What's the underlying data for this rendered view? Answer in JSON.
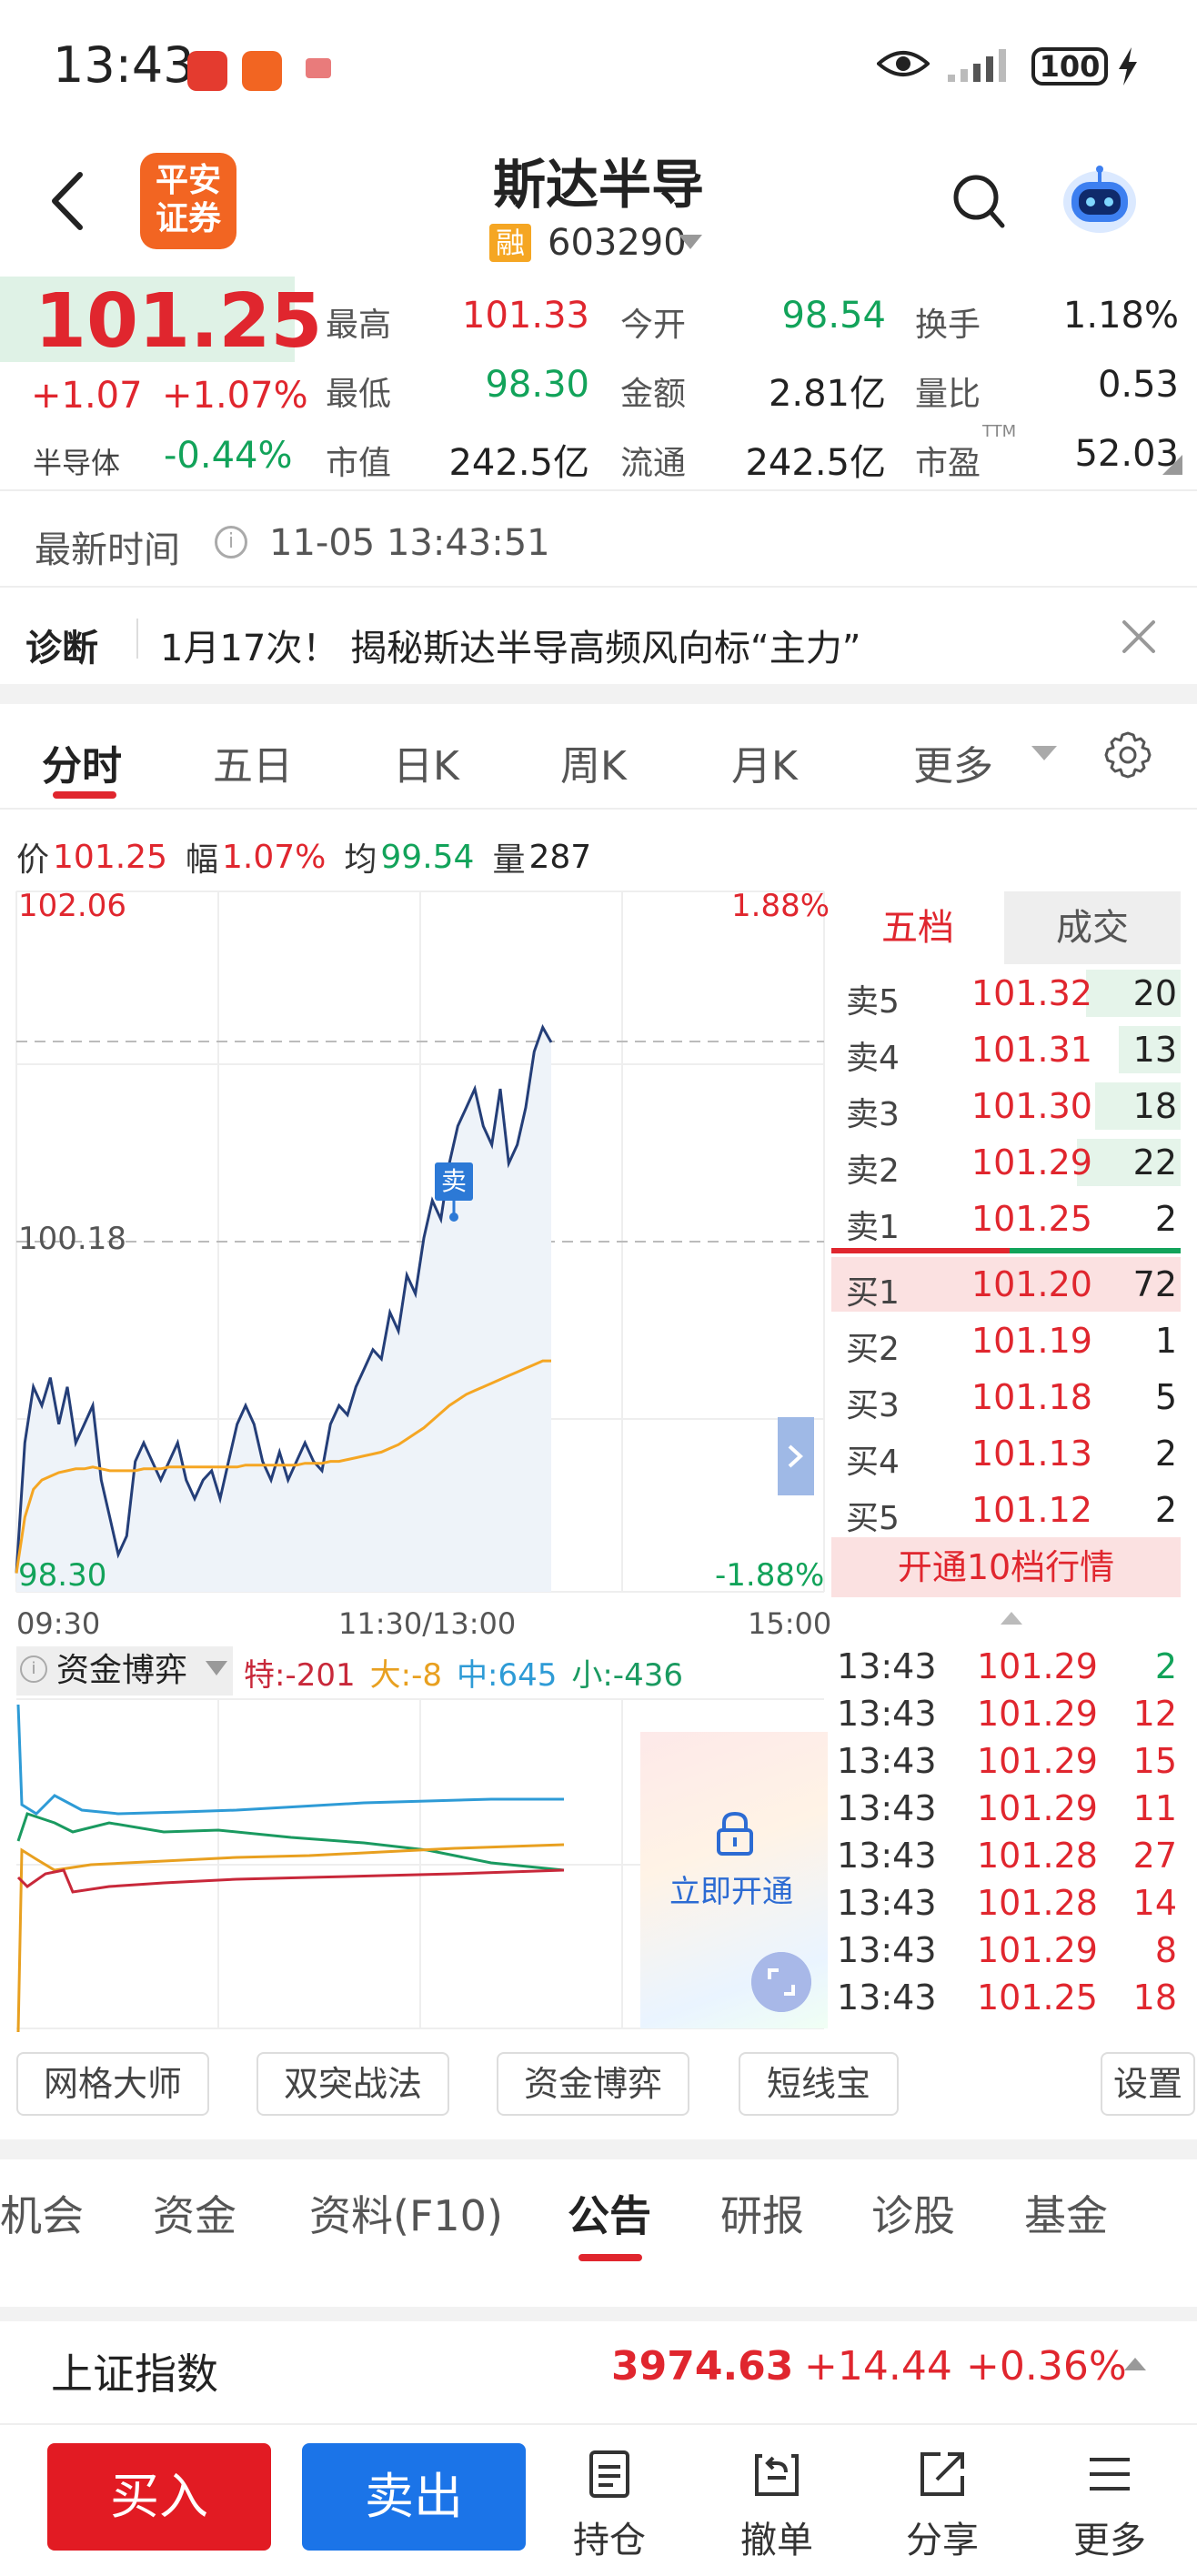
{
  "status_bar": {
    "time": "13:43",
    "battery": "100"
  },
  "header": {
    "stock_name": "斯达半导",
    "badge": "融",
    "code": "603290"
  },
  "quote": {
    "price": "101.25",
    "change": "+1.07",
    "change_pct": "+1.07%",
    "sector_name": "半导体",
    "sector_pct": "-0.44%",
    "rows": [
      [
        {
          "label": "最高",
          "value": "101.33"
        },
        {
          "label": "今开",
          "value": "98.54"
        },
        {
          "label": "换手",
          "value": "1.18%"
        }
      ],
      [
        {
          "label": "最低",
          "value": "98.30"
        },
        {
          "label": "金额",
          "value": "2.81亿"
        },
        {
          "label": "量比",
          "value": "0.53"
        }
      ],
      [
        {
          "label": "市值",
          "value": "242.5亿"
        },
        {
          "label": "流通",
          "value": "242.5亿"
        },
        {
          "label": "市盈",
          "value": "52.03",
          "sup": "TTM"
        }
      ]
    ]
  },
  "latest_time": {
    "label": "最新时间",
    "value": "11-05 13:43:51"
  },
  "diagnosis": {
    "label": "诊断",
    "text": "1月17次！ 揭秘斯达半导高频风向标“主力”"
  },
  "chart_tabs": [
    "分时",
    "五日",
    "日K",
    "周K",
    "月K",
    "更多"
  ],
  "info_bar": {
    "price_label": "价",
    "price": "101.25",
    "amp_label": "幅",
    "amp": "1.07%",
    "avg_label": "均",
    "avg": "99.54",
    "vol_label": "量",
    "vol": "287"
  },
  "chart_data": {
    "type": "line",
    "y_top": "102.06",
    "y_mid": "100.18",
    "y_bottom": "98.30",
    "pct_top": "1.88%",
    "pct_bottom": "-1.88%",
    "x_labels": [
      "09:30",
      "11:30/13:00",
      "15:00"
    ],
    "ylim": [
      98.3,
      102.06
    ],
    "marker": "卖",
    "series": [
      {
        "values": [
          98.4,
          99.1,
          99.4,
          99.3,
          99.45,
          99.2,
          99.4,
          99.1,
          99.2,
          99.3,
          98.9,
          98.7,
          98.5,
          98.6,
          99.0,
          99.1,
          99.0,
          98.9,
          99.0,
          99.1,
          98.9,
          98.8,
          98.9,
          98.95,
          98.8,
          99.0,
          99.2,
          99.3,
          99.2,
          99.0,
          98.9,
          99.05,
          98.9,
          99.0,
          99.1,
          99.0,
          98.95,
          99.2,
          99.3,
          99.25,
          99.4,
          99.5,
          99.6,
          99.55,
          99.8,
          99.7,
          100.0,
          99.9,
          100.2,
          100.4,
          100.3,
          100.6,
          100.8,
          100.9,
          101.0,
          100.8,
          100.7,
          101.0,
          100.6,
          100.7,
          100.9,
          101.2,
          101.33,
          101.25
        ]
      },
      {
        "values": [
          98.4,
          98.7,
          98.85,
          98.9,
          98.92,
          98.94,
          98.95,
          98.96,
          98.96,
          98.97,
          98.96,
          98.95,
          98.95,
          98.95,
          98.95,
          98.96,
          98.96,
          98.96,
          98.97,
          98.97,
          98.97,
          98.97,
          98.97,
          98.97,
          98.97,
          98.97,
          98.97,
          98.98,
          98.98,
          98.98,
          98.98,
          98.98,
          98.98,
          98.98,
          98.99,
          98.99,
          98.99,
          99.0,
          99.0,
          99.01,
          99.02,
          99.03,
          99.04,
          99.05,
          99.07,
          99.09,
          99.12,
          99.15,
          99.18,
          99.22,
          99.26,
          99.3,
          99.33,
          99.36,
          99.38,
          99.4,
          99.42,
          99.44,
          99.46,
          99.48,
          99.5,
          99.52,
          99.54,
          99.54
        ]
      }
    ]
  },
  "order_book": {
    "tab_a": "五档",
    "tab_b": "成交",
    "asks": [
      {
        "label": "卖5",
        "price": "101.32",
        "vol": "20"
      },
      {
        "label": "卖4",
        "price": "101.31",
        "vol": "13"
      },
      {
        "label": "卖3",
        "price": "101.30",
        "vol": "18"
      },
      {
        "label": "卖2",
        "price": "101.29",
        "vol": "22"
      },
      {
        "label": "卖1",
        "price": "101.25",
        "vol": "2"
      }
    ],
    "bids": [
      {
        "label": "买1",
        "price": "101.20",
        "vol": "72"
      },
      {
        "label": "买2",
        "price": "101.19",
        "vol": "1"
      },
      {
        "label": "买3",
        "price": "101.18",
        "vol": "5"
      },
      {
        "label": "买4",
        "price": "101.13",
        "vol": "2"
      },
      {
        "label": "买5",
        "price": "101.12",
        "vol": "2"
      }
    ],
    "open_level10": "开通10档行情"
  },
  "trades": [
    {
      "time": "13:43",
      "price": "101.29",
      "vol": "2"
    },
    {
      "time": "13:43",
      "price": "101.29",
      "vol": "12"
    },
    {
      "time": "13:43",
      "price": "101.29",
      "vol": "15"
    },
    {
      "time": "13:43",
      "price": "101.29",
      "vol": "11"
    },
    {
      "time": "13:43",
      "price": "101.28",
      "vol": "27"
    },
    {
      "time": "13:43",
      "price": "101.28",
      "vol": "14"
    },
    {
      "time": "13:43",
      "price": "101.29",
      "vol": "8"
    },
    {
      "time": "13:43",
      "price": "101.25",
      "vol": "18"
    }
  ],
  "fund_flow": {
    "title": "资金博弈",
    "te": "特:-201",
    "da": "大:-8",
    "zhong": "中:645",
    "xiao": "小:-436",
    "unlock": "立即开通",
    "colors": {
      "te": "#c8283a",
      "da": "#e8a020",
      "zhong": "#2e9bd6",
      "xiao": "#1a9a60"
    }
  },
  "tools": [
    "网格大师",
    "双突战法",
    "资金博弈",
    "短线宝",
    "设置"
  ],
  "section_tabs": [
    "机会",
    "资金",
    "资料(F10)",
    "公告",
    "研报",
    "诊股",
    "基金"
  ],
  "index": {
    "name": "上证指数",
    "value": "3974.63",
    "change": "+14.44",
    "pct": "+0.36%"
  },
  "bottom_bar": {
    "buy": "买入",
    "sell": "卖出",
    "items": [
      {
        "label": "持仓",
        "icon": "position-icon"
      },
      {
        "label": "撤单",
        "icon": "cancel-order-icon"
      },
      {
        "label": "分享",
        "icon": "share-icon"
      },
      {
        "label": "更多",
        "icon": "more-icon"
      }
    ]
  }
}
